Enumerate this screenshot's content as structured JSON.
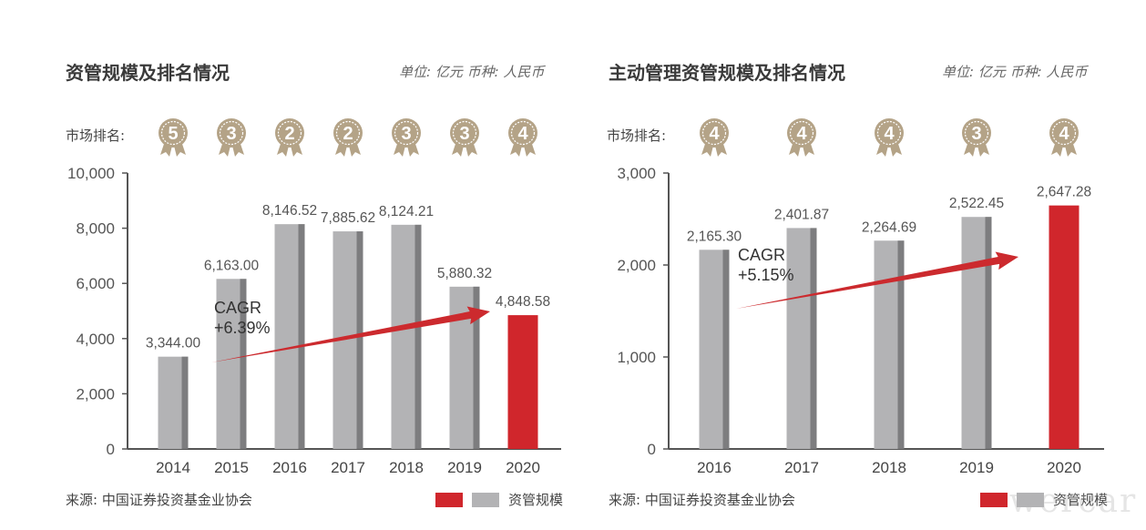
{
  "colors": {
    "bar_gray": "#b3b3b5",
    "bar_gray_shadow": "#7d7d7f",
    "bar_red": "#d0262c",
    "bar_red_shadow": "#a01c20",
    "medal": "#b4a387",
    "arrow": "#cc2a2e",
    "axis": "#555555"
  },
  "charts": [
    {
      "title": "资管规模及排名情况",
      "unit": "单位: 亿元 币种: 人民币",
      "rank_label": "市场排名:",
      "source": "来源: 中国证券投资基金业协会",
      "legend_label": "资管规模",
      "cagr_line1": "CAGR",
      "cagr_line2": "+6.39%"
    },
    {
      "title": "主动管理资管规模及排名情况",
      "unit": "单位: 亿元 币种: 人民币",
      "rank_label": "市场排名:",
      "source": "来源: 中国证券投资基金业协会",
      "legend_label": "资管规模",
      "cagr_line1": "CAGR",
      "cagr_line2": "+5.15%"
    }
  ],
  "watermark": "wercar",
  "chart_data": [
    {
      "type": "bar",
      "categories": [
        "2014",
        "2015",
        "2016",
        "2017",
        "2018",
        "2019",
        "2020"
      ],
      "values": [
        3344.0,
        6163.0,
        8146.52,
        7885.62,
        8124.21,
        5880.32,
        4848.58
      ],
      "value_labels": [
        "3,344.00",
        "6,163.00",
        "8,146.52",
        "7,885.62",
        "8,124.21",
        "5,880.32",
        "4,848.58"
      ],
      "ranks": [
        "5",
        "3",
        "2",
        "2",
        "3",
        "3",
        "4"
      ],
      "ylim": [
        0,
        10000
      ],
      "yticks": [
        0,
        2000,
        4000,
        6000,
        8000,
        10000
      ],
      "ytick_labels": [
        "0",
        "2,000",
        "4,000",
        "6,000",
        "8,000",
        "10,000"
      ],
      "highlight_index": 6,
      "cagr": "+6.39%"
    },
    {
      "type": "bar",
      "categories": [
        "2016",
        "2017",
        "2018",
        "2019",
        "2020"
      ],
      "values": [
        2165.3,
        2401.87,
        2264.69,
        2522.45,
        2647.28
      ],
      "value_labels": [
        "2,165.30",
        "2,401.87",
        "2,264.69",
        "2,522.45",
        "2,647.28"
      ],
      "ranks": [
        "4",
        "4",
        "4",
        "3",
        "4"
      ],
      "ylim": [
        0,
        3000
      ],
      "yticks": [
        0,
        1000,
        2000,
        3000
      ],
      "ytick_labels": [
        "0",
        "1,000",
        "2,000",
        "3,000"
      ],
      "highlight_index": 4,
      "cagr": "+5.15%"
    }
  ]
}
